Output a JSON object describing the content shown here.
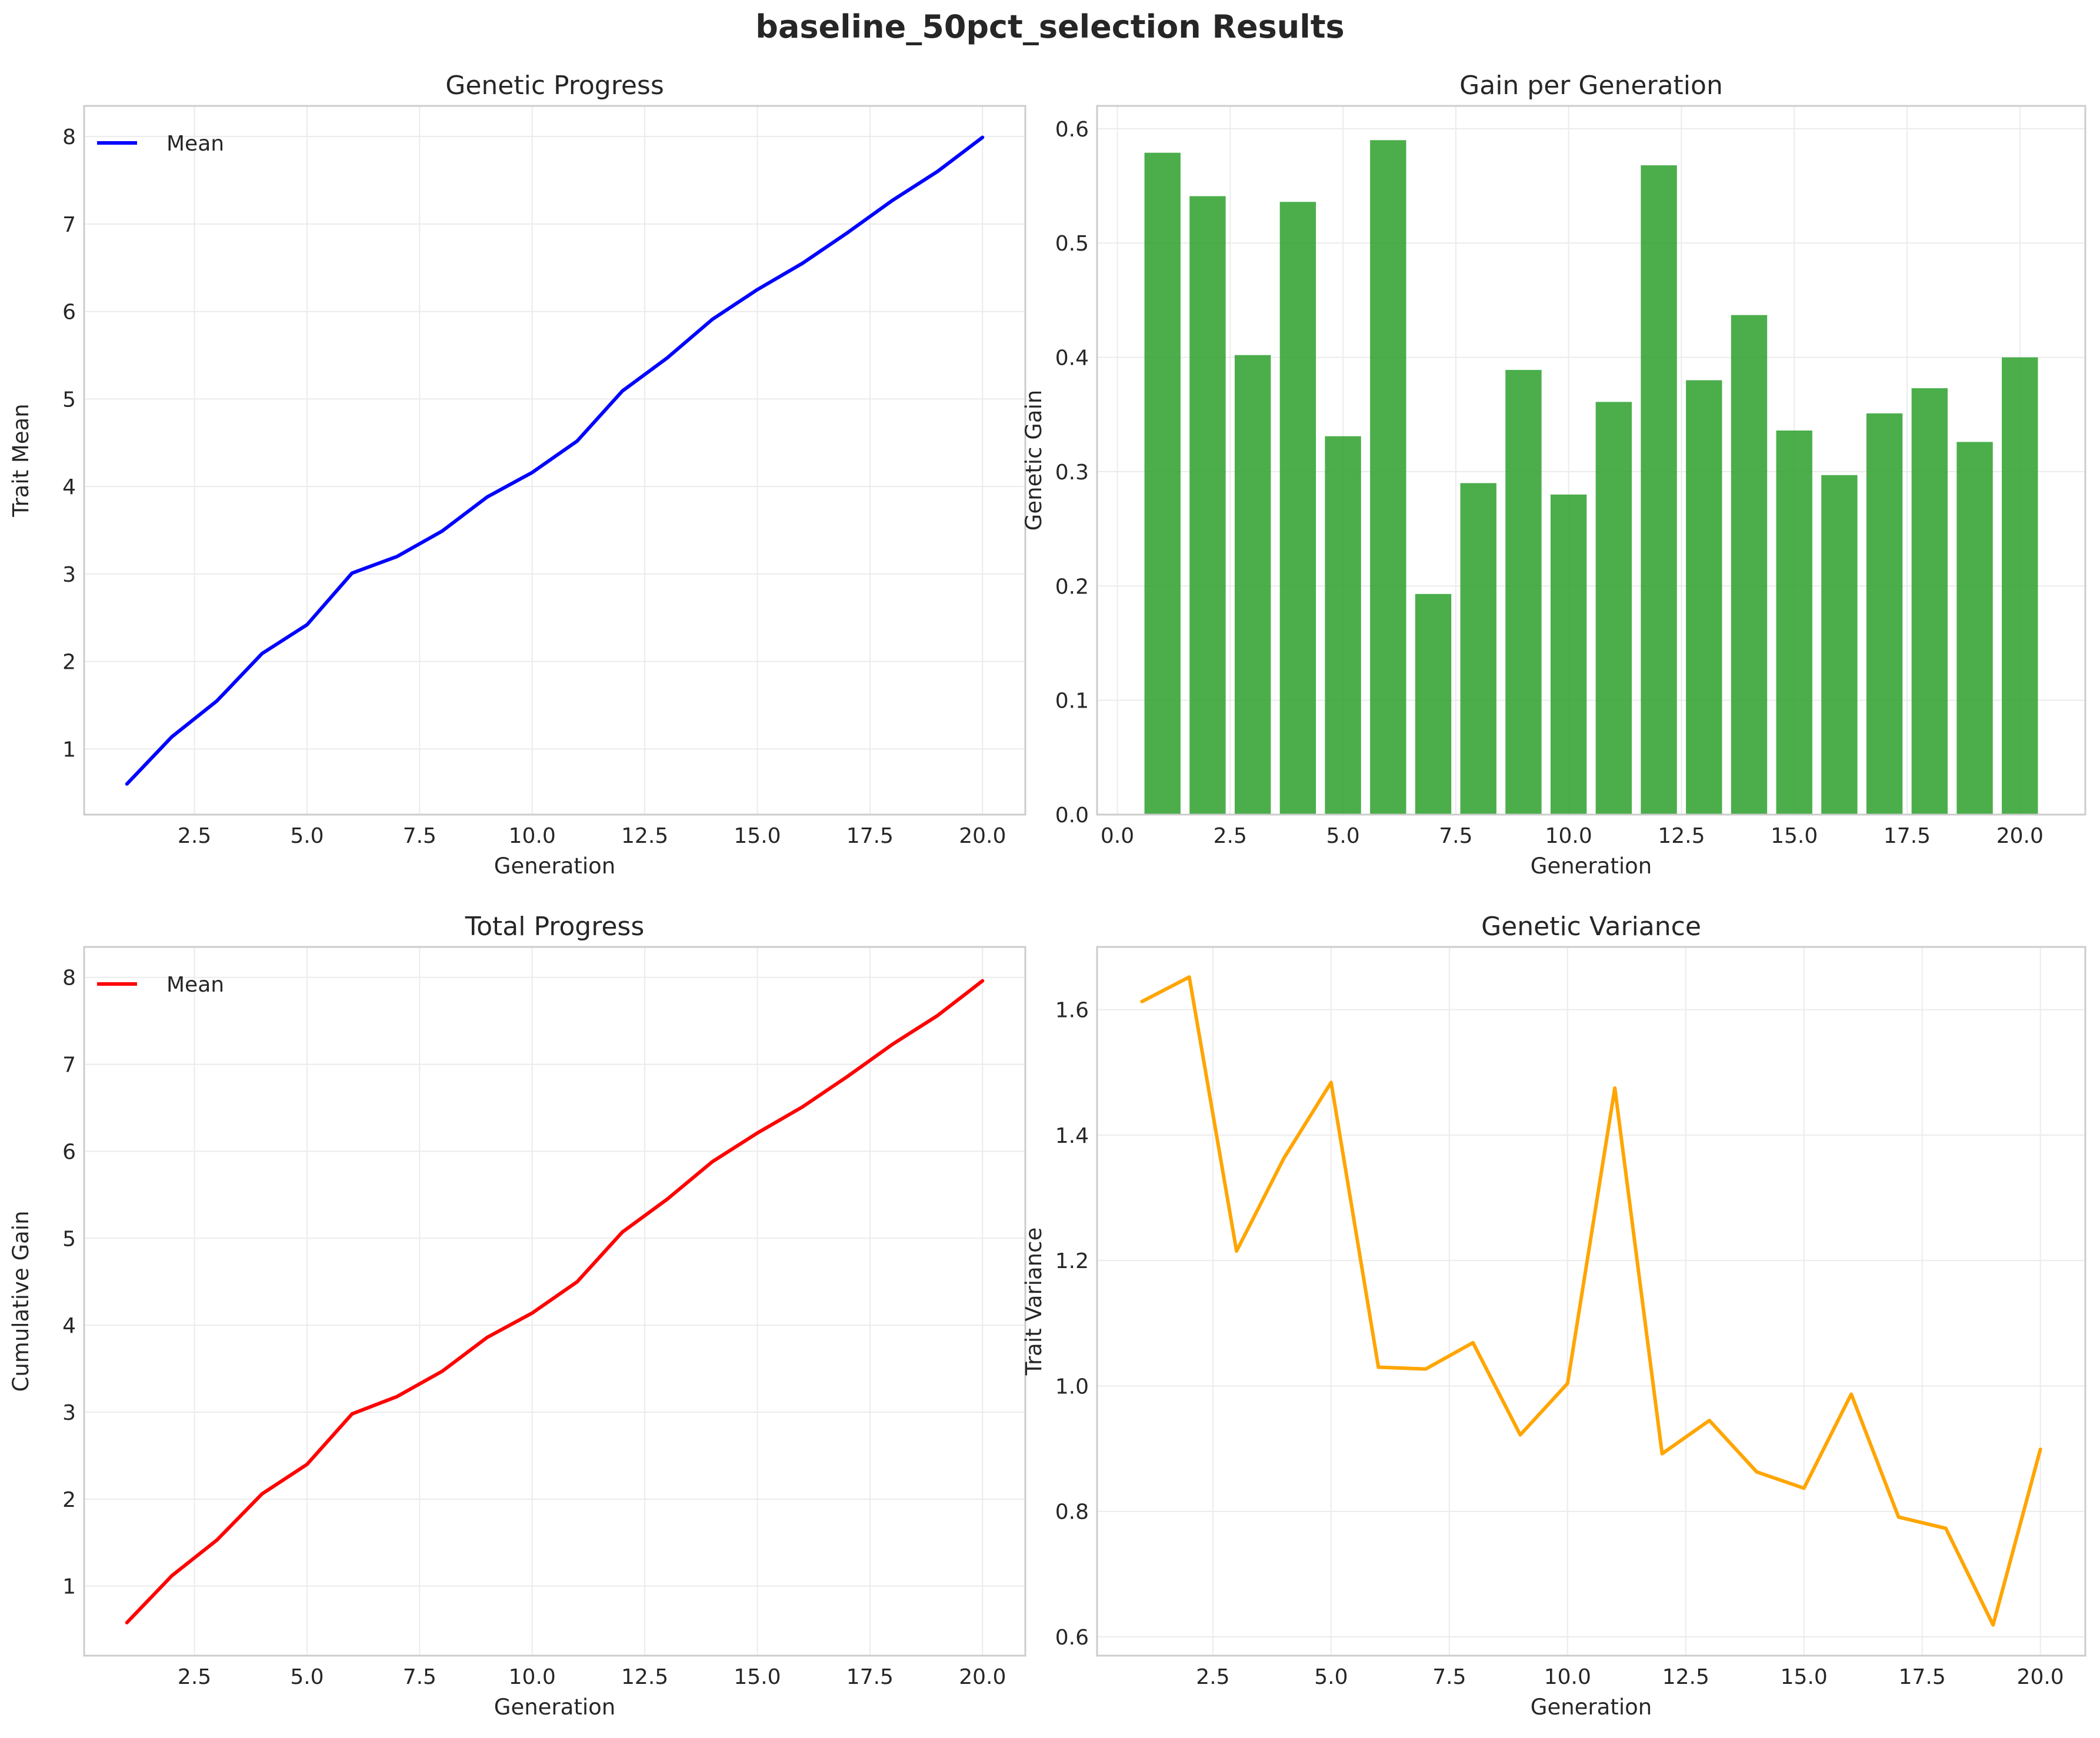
{
  "figure_title": "baseline_50pct_selection Results",
  "chart_data": [
    {
      "id": "genetic-progress",
      "type": "line",
      "title": "Genetic Progress",
      "xlabel": "Generation",
      "ylabel": "Trait Mean",
      "xlim": [
        0.05,
        20.95
      ],
      "ylim": [
        0.25,
        8.35
      ],
      "xticks": [
        2.5,
        5.0,
        7.5,
        10.0,
        12.5,
        15.0,
        17.5,
        20.0
      ],
      "yticks": [
        1,
        2,
        3,
        4,
        5,
        6,
        7,
        8
      ],
      "grid": true,
      "legend": "upper-left",
      "series": [
        {
          "name": "Mean",
          "color": "#0000ff",
          "x": [
            1,
            2,
            3,
            4,
            5,
            6,
            7,
            8,
            9,
            10,
            11,
            12,
            13,
            14,
            15,
            16,
            17,
            18,
            19,
            20
          ],
          "y": [
            0.6,
            1.14,
            1.55,
            2.09,
            2.42,
            3.01,
            3.2,
            3.49,
            3.88,
            4.16,
            4.52,
            5.09,
            5.47,
            5.91,
            6.25,
            6.55,
            6.9,
            7.27,
            7.6,
            7.99
          ]
        }
      ]
    },
    {
      "id": "gain-per-generation",
      "type": "bar",
      "title": "Gain per Generation",
      "xlabel": "Generation",
      "ylabel": "Genetic Gain",
      "xlim": [
        -0.45,
        21.45
      ],
      "ylim": [
        0,
        0.62
      ],
      "xticks": [
        0.0,
        2.5,
        5.0,
        7.5,
        10.0,
        12.5,
        15.0,
        17.5,
        20.0
      ],
      "yticks": [
        0.0,
        0.1,
        0.2,
        0.3,
        0.4,
        0.5,
        0.6
      ],
      "grid": true,
      "color": "#2ca02c",
      "x": [
        1,
        2,
        3,
        4,
        5,
        6,
        7,
        8,
        9,
        10,
        11,
        12,
        13,
        14,
        15,
        16,
        17,
        18,
        19,
        20
      ],
      "values": [
        0.579,
        0.541,
        0.402,
        0.536,
        0.331,
        0.59,
        0.193,
        0.29,
        0.389,
        0.28,
        0.361,
        0.568,
        0.38,
        0.437,
        0.336,
        0.297,
        0.351,
        0.373,
        0.326,
        0.4
      ]
    },
    {
      "id": "total-progress",
      "type": "line",
      "title": "Total Progress",
      "xlabel": "Generation",
      "ylabel": "Cumulative Gain",
      "xlim": [
        0.05,
        20.95
      ],
      "ylim": [
        0.2,
        8.35
      ],
      "xticks": [
        2.5,
        5.0,
        7.5,
        10.0,
        12.5,
        15.0,
        17.5,
        20.0
      ],
      "yticks": [
        1,
        2,
        3,
        4,
        5,
        6,
        7,
        8
      ],
      "grid": true,
      "legend": "upper-left",
      "series": [
        {
          "name": "Mean",
          "color": "#ff0000",
          "x": [
            1,
            2,
            3,
            4,
            5,
            6,
            7,
            8,
            9,
            10,
            11,
            12,
            13,
            14,
            15,
            16,
            17,
            18,
            19,
            20
          ],
          "y": [
            0.58,
            1.12,
            1.53,
            2.06,
            2.4,
            2.98,
            3.18,
            3.47,
            3.86,
            4.14,
            4.5,
            5.07,
            5.45,
            5.88,
            6.21,
            6.51,
            6.86,
            7.23,
            7.56,
            7.96
          ]
        }
      ]
    },
    {
      "id": "genetic-variance",
      "type": "line",
      "title": "Genetic Variance",
      "xlabel": "Generation",
      "ylabel": "Trait Variance",
      "xlim": [
        0.05,
        20.95
      ],
      "ylim": [
        0.57,
        1.7
      ],
      "xticks": [
        2.5,
        5.0,
        7.5,
        10.0,
        12.5,
        15.0,
        17.5,
        20.0
      ],
      "yticks": [
        0.6,
        0.8,
        1.0,
        1.2,
        1.4,
        1.6
      ],
      "grid": true,
      "series": [
        {
          "color": "#ffa500",
          "x": [
            1,
            2,
            3,
            4,
            5,
            6,
            7,
            8,
            9,
            10,
            11,
            12,
            13,
            14,
            15,
            16,
            17,
            18,
            19,
            20
          ],
          "y": [
            1.613,
            1.652,
            1.215,
            1.363,
            1.484,
            1.03,
            1.027,
            1.069,
            0.922,
            1.004,
            1.475,
            0.892,
            0.945,
            0.863,
            0.837,
            0.987,
            0.791,
            0.773,
            0.619,
            0.899
          ]
        }
      ]
    }
  ]
}
